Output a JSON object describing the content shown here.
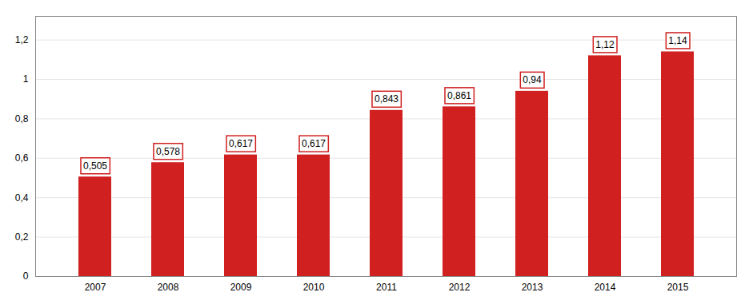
{
  "chart_data": {
    "type": "bar",
    "categories": [
      "2007",
      "2008",
      "2009",
      "2010",
      "2011",
      "2012",
      "2013",
      "2014",
      "2015"
    ],
    "values": [
      0.505,
      0.578,
      0.617,
      0.617,
      0.843,
      0.861,
      0.94,
      1.12,
      1.14
    ],
    "value_labels": [
      "0,505",
      "0,578",
      "0,617",
      "0,617",
      "0,843",
      "0,861",
      "0,94",
      "1,12",
      "1,14"
    ],
    "data_labels": true,
    "color": "#D02020",
    "ylim": [
      0,
      1.32
    ],
    "yticks": [
      0,
      {
        "value": 0.2,
        "label": "0,2"
      },
      {
        "value": 0.4,
        "label": "0,4"
      },
      {
        "value": 0.6,
        "label": "0,6"
      },
      {
        "value": 0.8,
        "label": "0,8"
      },
      1,
      {
        "value": 1.2,
        "label": "1,2"
      }
    ],
    "grid": true
  }
}
